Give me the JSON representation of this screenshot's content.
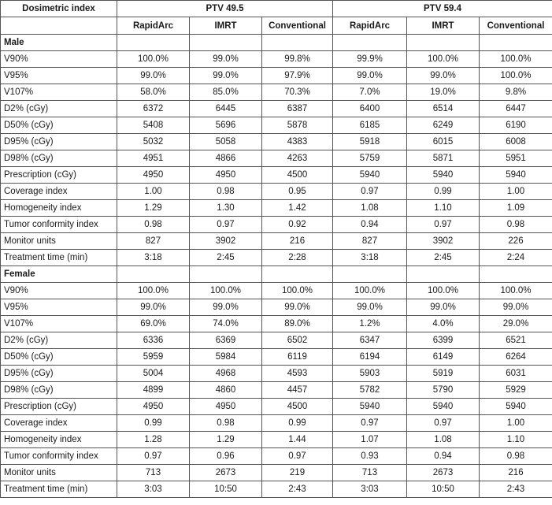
{
  "header": {
    "index_label": "Dosimetric index",
    "groups": [
      "PTV 49.5",
      "PTV 59.4"
    ],
    "subcols": [
      "RapidArc",
      "IMRT",
      "Conventional",
      "RapidArc",
      "IMRT",
      "Conventional"
    ]
  },
  "sections": [
    {
      "title": "Male",
      "rows": [
        {
          "label": "V90%",
          "values": [
            "100.0%",
            "99.0%",
            "99.8%",
            "99.9%",
            "100.0%",
            "100.0%"
          ]
        },
        {
          "label": "V95%",
          "values": [
            "99.0%",
            "99.0%",
            "97.9%",
            "99.0%",
            "99.0%",
            "100.0%"
          ]
        },
        {
          "label": "V107%",
          "values": [
            "58.0%",
            "85.0%",
            "70.3%",
            "7.0%",
            "19.0%",
            "9.8%"
          ]
        },
        {
          "label": "D2% (cGy)",
          "values": [
            "6372",
            "6445",
            "6387",
            "6400",
            "6514",
            "6447"
          ]
        },
        {
          "label": "D50% (cGy)",
          "values": [
            "5408",
            "5696",
            "5878",
            "6185",
            "6249",
            "6190"
          ]
        },
        {
          "label": "D95% (cGy)",
          "values": [
            "5032",
            "5058",
            "4383",
            "5918",
            "6015",
            "6008"
          ]
        },
        {
          "label": "D98% (cGy)",
          "values": [
            "4951",
            "4866",
            "4263",
            "5759",
            "5871",
            "5951"
          ]
        },
        {
          "label": "Prescription (cGy)",
          "values": [
            "4950",
            "4950",
            "4500",
            "5940",
            "5940",
            "5940"
          ]
        },
        {
          "label": "Coverage index",
          "values": [
            "1.00",
            "0.98",
            "0.95",
            "0.97",
            "0.99",
            "1.00"
          ]
        },
        {
          "label": "Homogeneity index",
          "values": [
            "1.29",
            "1.30",
            "1.42",
            "1.08",
            "1.10",
            "1.09"
          ]
        },
        {
          "label": "Tumor conformity index",
          "values": [
            "0.98",
            "0.97",
            "0.92",
            "0.94",
            "0.97",
            "0.98"
          ]
        },
        {
          "label": "Monitor units",
          "values": [
            "827",
            "3902",
            "216",
            "827",
            "3902",
            "226"
          ]
        },
        {
          "label": "Treatment time (min)",
          "values": [
            "3:18",
            "2:45",
            "2:28",
            "3:18",
            "2:45",
            "2:24"
          ]
        }
      ]
    },
    {
      "title": "Female",
      "rows": [
        {
          "label": "V90%",
          "values": [
            "100.0%",
            "100.0%",
            "100.0%",
            "100.0%",
            "100.0%",
            "100.0%"
          ]
        },
        {
          "label": "V95%",
          "values": [
            "99.0%",
            "99.0%",
            "99.0%",
            "99.0%",
            "99.0%",
            "99.0%"
          ]
        },
        {
          "label": "V107%",
          "values": [
            "69.0%",
            "74.0%",
            "89.0%",
            "1.2%",
            "4.0%",
            "29.0%"
          ]
        },
        {
          "label": "D2% (cGy)",
          "values": [
            "6336",
            "6369",
            "6502",
            "6347",
            "6399",
            "6521"
          ]
        },
        {
          "label": "D50% (cGy)",
          "values": [
            "5959",
            "5984",
            "6119",
            "6194",
            "6149",
            "6264"
          ]
        },
        {
          "label": "D95% (cGy)",
          "values": [
            "5004",
            "4968",
            "4593",
            "5903",
            "5919",
            "6031"
          ]
        },
        {
          "label": "D98% (cGy)",
          "values": [
            "4899",
            "4860",
            "4457",
            "5782",
            "5790",
            "5929"
          ]
        },
        {
          "label": "Prescription (cGy)",
          "values": [
            "4950",
            "4950",
            "4500",
            "5940",
            "5940",
            "5940"
          ]
        },
        {
          "label": "Coverage index",
          "values": [
            "0.99",
            "0.98",
            "0.99",
            "0.97",
            "0.97",
            "1.00"
          ]
        },
        {
          "label": "Homogeneity index",
          "values": [
            "1.28",
            "1.29",
            "1.44",
            "1.07",
            "1.08",
            "1.10"
          ]
        },
        {
          "label": "Tumor conformity index",
          "values": [
            "0.97",
            "0.96",
            "0.97",
            "0.93",
            "0.94",
            "0.98"
          ]
        },
        {
          "label": "Monitor units",
          "values": [
            "713",
            "2673",
            "219",
            "713",
            "2673",
            "216"
          ]
        },
        {
          "label": "Treatment time (min)",
          "values": [
            "3:03",
            "10:50",
            "2:43",
            "3:03",
            "10:50",
            "2:43"
          ]
        }
      ]
    }
  ]
}
